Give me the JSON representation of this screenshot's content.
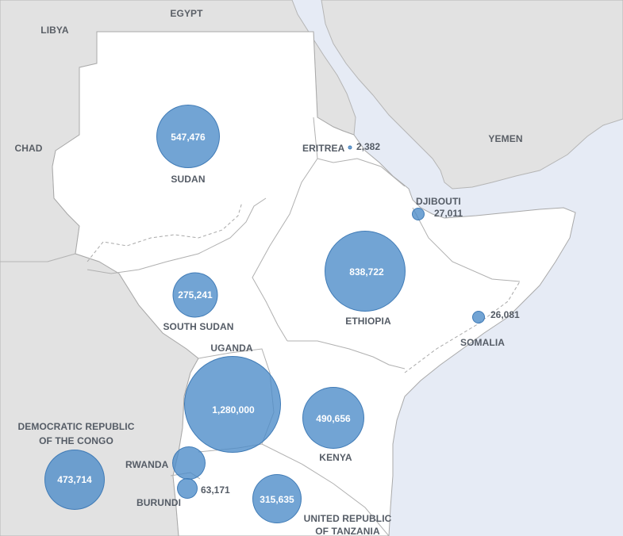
{
  "neighbors": {
    "libya": "LIBYA",
    "egypt": "EGYPT",
    "chad": "CHAD",
    "yemen": "YEMEN"
  },
  "countries": {
    "sudan": {
      "name": "SUDAN",
      "value": "547,476",
      "value_num": 547476
    },
    "eritrea": {
      "name": "ERITREA",
      "value": "2,382",
      "value_num": 2382
    },
    "djibouti": {
      "name": "DJIBOUTI",
      "value": "27,011",
      "value_num": 27011
    },
    "south_sudan": {
      "name": "SOUTH SUDAN",
      "value": "275,241",
      "value_num": 275241
    },
    "ethiopia": {
      "name": "ETHIOPIA",
      "value": "838,722",
      "value_num": 838722
    },
    "somalia": {
      "name": "SOMALIA",
      "value": "26,081",
      "value_num": 26081
    },
    "uganda": {
      "name": "UGANDA",
      "value": "1,280,000",
      "value_num": 1280000
    },
    "kenya": {
      "name": "KENYA",
      "value": "490,656",
      "value_num": 490656
    },
    "drc": {
      "name_line1": "DEMOCRATIC REPUBLIC",
      "name_line2": "OF THE CONGO",
      "value": "473,714",
      "value_num": 473714
    },
    "rwanda": {
      "name": "RWANDA",
      "value": "",
      "value_num": null
    },
    "burundi": {
      "name": "BURUNDI",
      "value": "63,171",
      "value_num": 63171
    },
    "tanzania": {
      "name_line1": "UNITED REPUBLIC",
      "name_line2": "OF TANZANIA",
      "value": "315,635",
      "value_num": 315635
    }
  },
  "colors": {
    "water": "#e6ebf5",
    "land_focus": "#ffffff",
    "land_neighbor": "#e2e2e2",
    "border": "#a9a9a9",
    "bubble": "#4a8ac8",
    "label": "#555c66"
  }
}
